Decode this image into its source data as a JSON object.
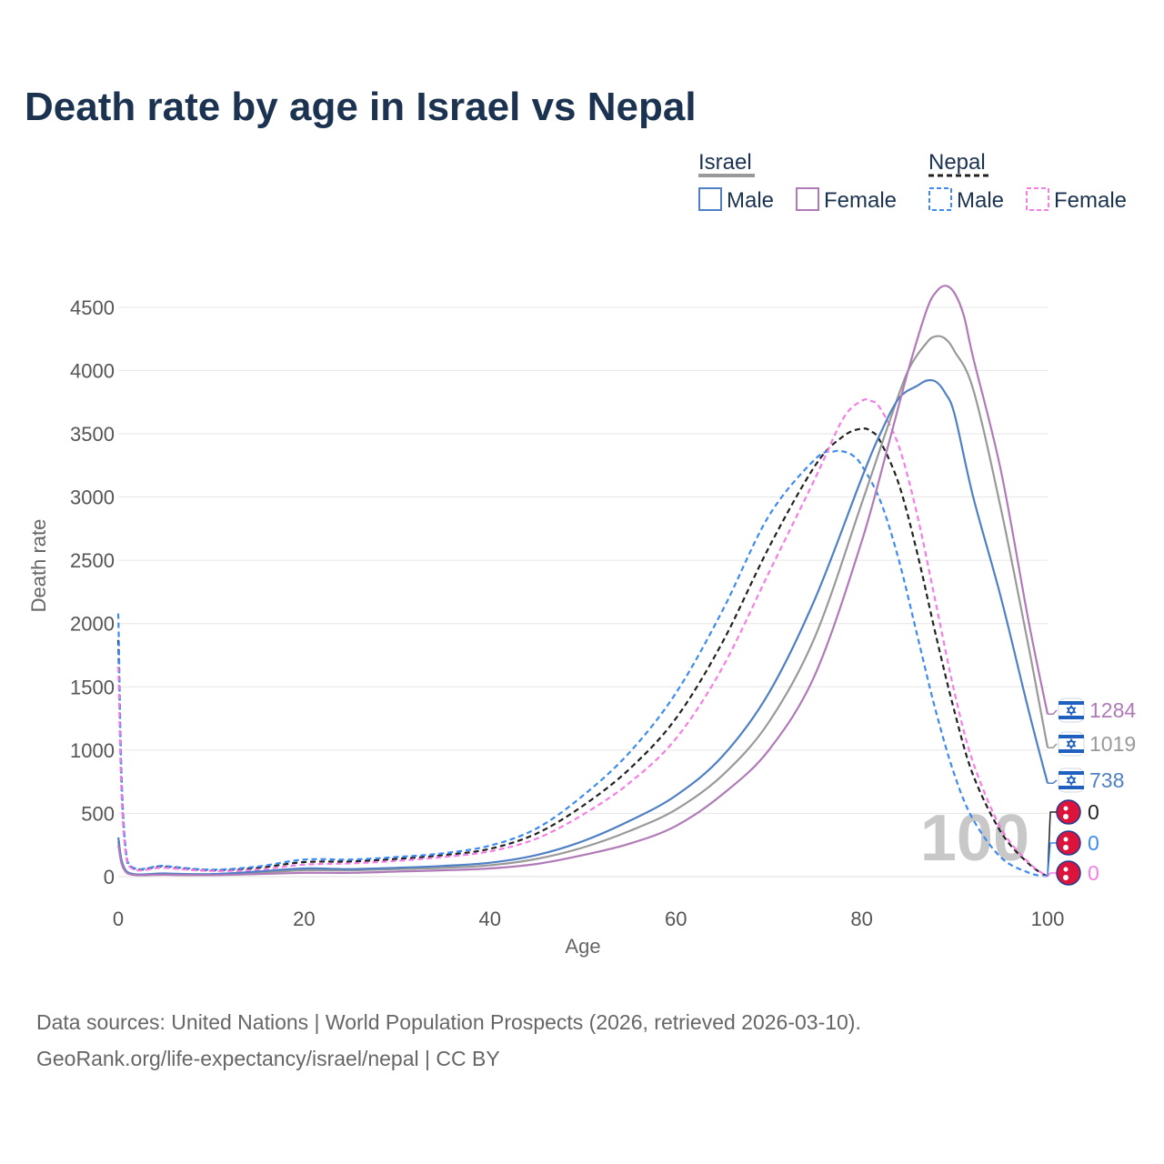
{
  "chart_data": {
    "type": "line",
    "title": "Death rate by age in Israel vs Nepal",
    "xlabel": "Age",
    "ylabel": "Death rate",
    "xlim": [
      0,
      100
    ],
    "ylim": [
      0,
      4700
    ],
    "xticks": [
      0,
      20,
      40,
      60,
      80,
      100
    ],
    "yticks": [
      0,
      500,
      1000,
      1500,
      2000,
      2500,
      3000,
      3500,
      4000,
      4500
    ],
    "grid": true,
    "year_watermark": "100",
    "legend": {
      "groups": [
        {
          "name": "Israel",
          "entries": [
            "Male",
            "Female"
          ]
        },
        {
          "name": "Nepal",
          "entries": [
            "Male",
            "Female"
          ]
        }
      ]
    },
    "series": [
      {
        "name": "Israel Total",
        "country": "Israel",
        "sex": "Total",
        "color": "#999999",
        "dashed": false,
        "end_label": "1019",
        "x": [
          0,
          1,
          5,
          10,
          15,
          20,
          25,
          30,
          35,
          40,
          45,
          50,
          55,
          60,
          65,
          70,
          75,
          80,
          83,
          85,
          87,
          88,
          89,
          90,
          92,
          95,
          98,
          100
        ],
        "y": [
          280,
          30,
          20,
          15,
          30,
          50,
          50,
          60,
          70,
          90,
          140,
          230,
          360,
          530,
          800,
          1220,
          1900,
          2950,
          3600,
          4000,
          4220,
          4270,
          4250,
          4150,
          3850,
          2900,
          1800,
          1019
        ]
      },
      {
        "name": "Israel Male",
        "country": "Israel",
        "sex": "Male",
        "color": "#4f7fc4",
        "dashed": false,
        "end_label": "738",
        "x": [
          0,
          1,
          5,
          10,
          15,
          20,
          25,
          30,
          35,
          40,
          45,
          50,
          55,
          60,
          65,
          70,
          75,
          80,
          82,
          84,
          86,
          87,
          88,
          89,
          90,
          92,
          95,
          98,
          100
        ],
        "y": [
          310,
          35,
          25,
          20,
          40,
          65,
          60,
          70,
          85,
          110,
          170,
          280,
          440,
          640,
          950,
          1450,
          2200,
          3150,
          3500,
          3780,
          3880,
          3920,
          3910,
          3820,
          3650,
          3000,
          2200,
          1300,
          738
        ]
      },
      {
        "name": "Israel Female",
        "country": "Israel",
        "sex": "Female",
        "color": "#b07ab8",
        "dashed": false,
        "end_label": "1284",
        "x": [
          0,
          1,
          5,
          10,
          15,
          20,
          25,
          30,
          35,
          40,
          45,
          50,
          55,
          60,
          65,
          70,
          75,
          80,
          83,
          85,
          87,
          88,
          89,
          90,
          91,
          92,
          95,
          98,
          100
        ],
        "y": [
          250,
          25,
          15,
          12,
          20,
          30,
          30,
          40,
          50,
          65,
          100,
          170,
          260,
          400,
          650,
          1000,
          1600,
          2650,
          3450,
          4000,
          4480,
          4620,
          4670,
          4610,
          4430,
          4100,
          3200,
          2000,
          1284
        ]
      },
      {
        "name": "Nepal Total",
        "country": "Nepal",
        "sex": "Total",
        "color": "#222222",
        "dashed": true,
        "end_label": "0",
        "x": [
          0,
          1,
          5,
          10,
          15,
          20,
          25,
          30,
          35,
          40,
          45,
          50,
          55,
          60,
          65,
          70,
          75,
          78,
          80,
          81,
          82,
          84,
          86,
          88,
          90,
          92,
          95,
          98,
          100
        ],
        "y": [
          1870,
          110,
          80,
          50,
          70,
          115,
          120,
          140,
          170,
          220,
          340,
          560,
          850,
          1250,
          1850,
          2600,
          3250,
          3480,
          3540,
          3520,
          3440,
          3100,
          2550,
          1900,
          1300,
          800,
          350,
          100,
          0
        ]
      },
      {
        "name": "Nepal Male",
        "country": "Nepal",
        "sex": "Male",
        "color": "#3d8bf0",
        "dashed": true,
        "end_label": "0",
        "x": [
          0,
          1,
          5,
          10,
          15,
          20,
          25,
          30,
          35,
          40,
          45,
          50,
          55,
          60,
          65,
          70,
          75,
          77,
          78,
          79,
          80,
          82,
          84,
          86,
          88,
          90,
          92,
          95,
          98,
          100
        ],
        "y": [
          2080,
          120,
          85,
          55,
          80,
          135,
          135,
          155,
          185,
          245,
          380,
          640,
          980,
          1450,
          2100,
          2850,
          3300,
          3360,
          3360,
          3330,
          3250,
          2970,
          2500,
          1900,
          1300,
          800,
          450,
          150,
          30,
          0
        ]
      },
      {
        "name": "Nepal Female",
        "country": "Nepal",
        "sex": "Female",
        "color": "#f77ce6",
        "dashed": true,
        "end_label": "0",
        "x": [
          0,
          1,
          5,
          10,
          15,
          20,
          25,
          30,
          35,
          40,
          45,
          50,
          55,
          60,
          65,
          70,
          75,
          78,
          80,
          81,
          82,
          84,
          86,
          88,
          90,
          92,
          95,
          98,
          100
        ],
        "y": [
          1660,
          100,
          70,
          45,
          55,
          95,
          105,
          125,
          155,
          200,
          300,
          490,
          740,
          1090,
          1650,
          2400,
          3150,
          3620,
          3760,
          3760,
          3700,
          3400,
          2850,
          2150,
          1450,
          900,
          380,
          110,
          0
        ]
      }
    ]
  },
  "source": {
    "line1": "Data sources: United Nations | World Population Prospects (2026, retrieved 2026-03-10).",
    "line2": "GeoRank.org/life-expectancy/israel/nepal | CC BY"
  }
}
